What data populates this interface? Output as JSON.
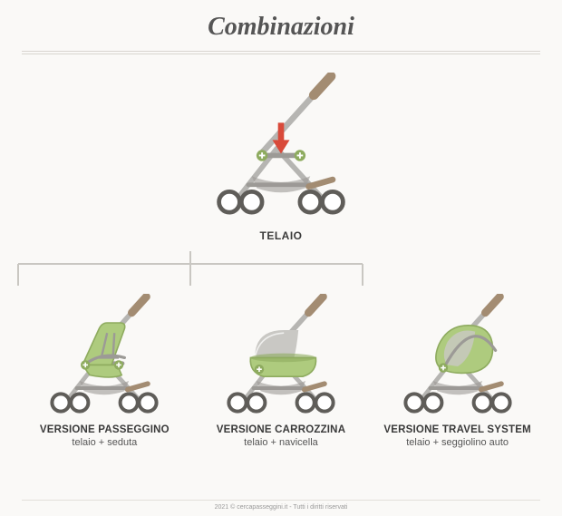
{
  "title": "Combinazioni",
  "title_fontsize": 28,
  "title_color": "#555555",
  "hero": {
    "label": "TELAIO"
  },
  "variants": [
    {
      "title": "VERSIONE PASSEGGINO",
      "sub": "telaio + seduta"
    },
    {
      "title": "VERSIONE CARROZZINA",
      "sub": "telaio + navicella"
    },
    {
      "title": "VERSIONE TRAVEL SYSTEM",
      "sub": "telaio + seggiolino auto"
    }
  ],
  "footer": "2021 © cercapasseggini.it - Tutti i diritti riservati",
  "colors": {
    "frame": "#b6b5b2",
    "frame_dark": "#9c9a96",
    "handle": "#a38c72",
    "wheel_stroke": "#5f5d59",
    "wheel_fill": "#ffffff",
    "accent_green": "#aecb7e",
    "accent_green_dark": "#8eab5f",
    "arrow_red": "#d94a3a",
    "plus_badge": "#8eab5f",
    "hood_grey": "#c9c8c4",
    "connector": "#c9c7c2"
  },
  "svg": {
    "hero_size": 190,
    "variant_size": 160
  }
}
